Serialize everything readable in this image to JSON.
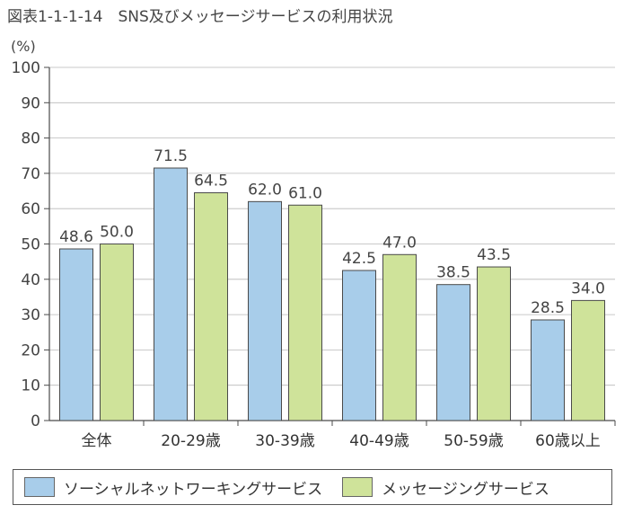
{
  "title": "図表1-1-1-14　SNS及びメッセージサービスの利用状況",
  "colors": {
    "sns": "#a8cdea",
    "messaging": "#cfe39a",
    "bar_stroke": "#4a4a4a",
    "axis": "#4a4a4a"
  },
  "chart_data": {
    "type": "bar",
    "title": "SNS及びメッセージサービスの利用状況",
    "ylabel": "(%)",
    "xlabel": "",
    "ylim": [
      0,
      100
    ],
    "yticks": [
      0,
      10,
      20,
      30,
      40,
      50,
      60,
      70,
      80,
      90,
      100
    ],
    "categories": [
      "全体",
      "20-29歳",
      "30-39歳",
      "40-49歳",
      "50-59歳",
      "60歳以上"
    ],
    "series": [
      {
        "name": "ソーシャルネットワーキングサービス",
        "values": [
          48.6,
          71.5,
          62.0,
          42.5,
          38.5,
          28.5
        ],
        "labels": [
          "48.6",
          "71.5",
          "62.0",
          "42.5",
          "38.5",
          "28.5"
        ]
      },
      {
        "name": "メッセージングサービス",
        "values": [
          50.0,
          64.5,
          61.0,
          47.0,
          43.5,
          34.0
        ],
        "labels": [
          "50.0",
          "64.5",
          "61.0",
          "47.0",
          "43.5",
          "34.0"
        ]
      }
    ],
    "legend": "bottom"
  }
}
